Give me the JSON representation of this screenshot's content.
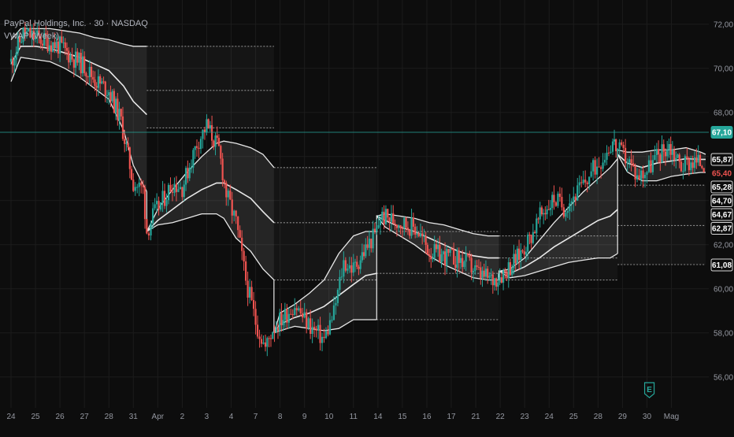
{
  "header": {
    "symbol_line": "PayPal Holdings, Inc. · 30 · NASDAQ",
    "indicator_line": "VWAP (Week)"
  },
  "colors": {
    "background": "#0d0d0d",
    "grid": "#1c1c1c",
    "up": "#26a69a",
    "down": "#ef5350",
    "band": "#e8e8e8",
    "band_fill": "rgba(255,255,255,0.10)",
    "axis_text": "#9598a1",
    "last_price_bg": "#26a69a"
  },
  "chart_data": {
    "type": "candlestick",
    "title": "",
    "y_axis": {
      "ticks": [
        56,
        58,
        60,
        62,
        64,
        66,
        68,
        70,
        72
      ],
      "tick_labels": [
        "56,00",
        "58,00",
        "60,00",
        "62,00",
        "64,00",
        "66,00",
        "68,00",
        "70,00",
        "72,00"
      ],
      "range": [
        54.6,
        73.1
      ]
    },
    "x_axis": {
      "tick_labels": [
        "24",
        "25",
        "26",
        "27",
        "28",
        "31",
        "Apr",
        "2",
        "3",
        "4",
        "7",
        "8",
        "9",
        "10",
        "11",
        "14",
        "15",
        "16",
        "17",
        "21",
        "22",
        "23",
        "24",
        "25",
        "28",
        "29",
        "30",
        "Mag"
      ],
      "range": [
        0,
        28.4
      ]
    },
    "grid": true,
    "last_price": {
      "value": 67.1,
      "label": "67,10"
    },
    "price_labels": [
      {
        "value": 65.87,
        "label": "65,87"
      },
      {
        "value": 65.4,
        "label": "65,40",
        "style": "down"
      },
      {
        "value": 65.28,
        "label": "65,28"
      },
      {
        "value": 64.7,
        "label": "64,70"
      },
      {
        "value": 64.67,
        "label": "64,67"
      },
      {
        "value": 62.87,
        "label": "62,87"
      },
      {
        "value": 61.08,
        "label": "61,08"
      }
    ],
    "earnings_marker": {
      "x": 26.1,
      "label": "E"
    },
    "price_path": [
      [
        0,
        70.3
      ],
      [
        0.5,
        71.6
      ],
      [
        1.0,
        71.4
      ],
      [
        1.5,
        71.2
      ],
      [
        2.0,
        71.0
      ],
      [
        2.5,
        70.5
      ],
      [
        3.0,
        70.1
      ],
      [
        3.5,
        69.4
      ],
      [
        4.0,
        69.0
      ],
      [
        4.5,
        67.6
      ],
      [
        5.0,
        64.8
      ],
      [
        5.4,
        64.5
      ],
      [
        5.55,
        62.6
      ],
      [
        5.8,
        63.3
      ],
      [
        6.2,
        64.0
      ],
      [
        6.6,
        64.8
      ],
      [
        7.0,
        64.6
      ],
      [
        7.6,
        66.6
      ],
      [
        8.0,
        67.4
      ],
      [
        8.5,
        66.3
      ],
      [
        8.8,
        64.3
      ],
      [
        9.2,
        63.0
      ],
      [
        9.6,
        60.4
      ],
      [
        10.0,
        58.5
      ],
      [
        10.4,
        57.3
      ],
      [
        10.7,
        58.2
      ],
      [
        11.2,
        58.8
      ],
      [
        11.6,
        59.3
      ],
      [
        12.0,
        58.6
      ],
      [
        12.4,
        58.1
      ],
      [
        12.8,
        57.7
      ],
      [
        13.2,
        58.9
      ],
      [
        13.6,
        61.2
      ],
      [
        14.0,
        60.9
      ],
      [
        14.5,
        61.8
      ],
      [
        14.95,
        62.6
      ],
      [
        15.1,
        63.3
      ],
      [
        15.4,
        63.2
      ],
      [
        16.0,
        63.0
      ],
      [
        16.6,
        62.7
      ],
      [
        17.1,
        61.7
      ],
      [
        17.6,
        61.5
      ],
      [
        18.1,
        61.4
      ],
      [
        18.6,
        61.2
      ],
      [
        19.2,
        60.6
      ],
      [
        19.7,
        60.4
      ],
      [
        20.2,
        60.8
      ],
      [
        20.7,
        61.4
      ],
      [
        21.2,
        62.3
      ],
      [
        21.7,
        63.4
      ],
      [
        22.2,
        64.1
      ],
      [
        22.6,
        63.7
      ],
      [
        23.0,
        64.2
      ],
      [
        23.4,
        64.7
      ],
      [
        23.8,
        65.4
      ],
      [
        24.2,
        66.0
      ],
      [
        24.6,
        66.7
      ],
      [
        24.8,
        66.3
      ],
      [
        25.2,
        65.9
      ],
      [
        25.6,
        65.1
      ],
      [
        26.0,
        65.4
      ],
      [
        26.4,
        66.0
      ],
      [
        26.9,
        66.5
      ],
      [
        27.4,
        65.6
      ],
      [
        27.8,
        65.8
      ],
      [
        28.4,
        65.7
      ]
    ],
    "vwap_weeks": [
      {
        "x": [
          0,
          0.4,
          1.0,
          1.6,
          2.2,
          2.8,
          3.4,
          4.0,
          4.6,
          5.0,
          5.55
        ],
        "upper": [
          71.3,
          71.8,
          71.8,
          71.8,
          71.7,
          71.6,
          71.4,
          71.3,
          71.1,
          71.0,
          71.0
        ],
        "vwap": [
          70.2,
          71.0,
          71.0,
          70.9,
          70.7,
          70.5,
          70.2,
          69.9,
          69.2,
          68.5,
          67.9
        ],
        "lower": [
          69.4,
          70.5,
          70.4,
          70.3,
          70.0,
          69.6,
          69.1,
          68.6,
          67.2,
          65.6,
          64.4
        ],
        "levels": [
          71.0,
          69.0,
          67.3
        ]
      },
      {
        "x": [
          5.55,
          6.0,
          6.6,
          7.2,
          7.8,
          8.4,
          8.7,
          9.2,
          9.8,
          10.3,
          10.75
        ],
        "upper": [
          62.6,
          63.6,
          64.5,
          65.3,
          66.0,
          66.6,
          66.7,
          66.6,
          66.4,
          66.1,
          65.5
        ],
        "vwap": [
          62.6,
          63.1,
          63.6,
          64.1,
          64.5,
          64.8,
          64.8,
          64.5,
          64.1,
          63.5,
          63.0
        ],
        "lower": [
          62.6,
          62.9,
          63.0,
          63.2,
          63.4,
          63.4,
          63.2,
          62.3,
          61.7,
          60.9,
          60.4
        ],
        "levels": [
          65.5,
          63.0,
          60.4
        ]
      },
      {
        "x": [
          10.75,
          11.0,
          11.6,
          12.2,
          12.8,
          13.4,
          14.0,
          14.5,
          14.95
        ],
        "upper": [
          58.0,
          58.9,
          59.3,
          59.8,
          60.4,
          61.6,
          62.4,
          62.6,
          62.6
        ],
        "vwap": [
          58.0,
          58.4,
          58.7,
          58.9,
          59.2,
          59.7,
          60.2,
          60.6,
          60.7
        ],
        "lower": [
          58.0,
          58.1,
          58.3,
          58.2,
          58.1,
          58.2,
          58.6,
          58.6,
          58.6
        ],
        "levels": [
          62.6,
          60.7,
          58.6
        ]
      },
      {
        "x": [
          14.95,
          15.3,
          15.9,
          16.5,
          17.1,
          17.7,
          18.3,
          18.9,
          19.5,
          19.95
        ],
        "upper": [
          63.3,
          63.4,
          63.3,
          63.2,
          63.0,
          62.9,
          62.7,
          62.5,
          62.4,
          62.4
        ],
        "vwap": [
          63.3,
          63.1,
          62.8,
          62.6,
          62.3,
          62.0,
          61.7,
          61.5,
          61.4,
          61.4
        ],
        "lower": [
          63.3,
          62.8,
          62.4,
          62.0,
          61.5,
          61.1,
          60.8,
          60.5,
          60.4,
          60.4
        ],
        "levels": [
          62.4,
          61.4,
          60.4
        ]
      },
      {
        "x": [
          19.95,
          20.4,
          21.0,
          21.6,
          22.2,
          22.8,
          23.4,
          24.0,
          24.5,
          24.8
        ],
        "upper": [
          60.8,
          60.9,
          61.4,
          62.2,
          63.0,
          63.7,
          64.4,
          65.0,
          65.5,
          65.9
        ],
        "vwap": [
          60.8,
          60.7,
          61.0,
          61.4,
          61.9,
          62.3,
          62.7,
          63.1,
          63.3,
          63.6
        ],
        "lower": [
          60.8,
          60.5,
          60.6,
          60.8,
          61.0,
          61.2,
          61.3,
          61.4,
          61.4,
          61.6
        ],
        "levels": [
          64.7,
          62.87,
          61.1
        ]
      },
      {
        "x": [
          24.8,
          25.2,
          25.8,
          26.4,
          27.0,
          27.6,
          28.2,
          28.4
        ],
        "upper": [
          66.3,
          66.2,
          66.2,
          66.3,
          66.3,
          66.4,
          66.2,
          66.1
        ],
        "vwap": [
          66.1,
          65.7,
          65.5,
          65.7,
          65.8,
          65.9,
          65.87,
          65.87
        ],
        "lower": [
          66.1,
          65.3,
          64.9,
          64.9,
          65.1,
          65.2,
          65.28,
          65.28
        ],
        "levels": []
      }
    ]
  }
}
